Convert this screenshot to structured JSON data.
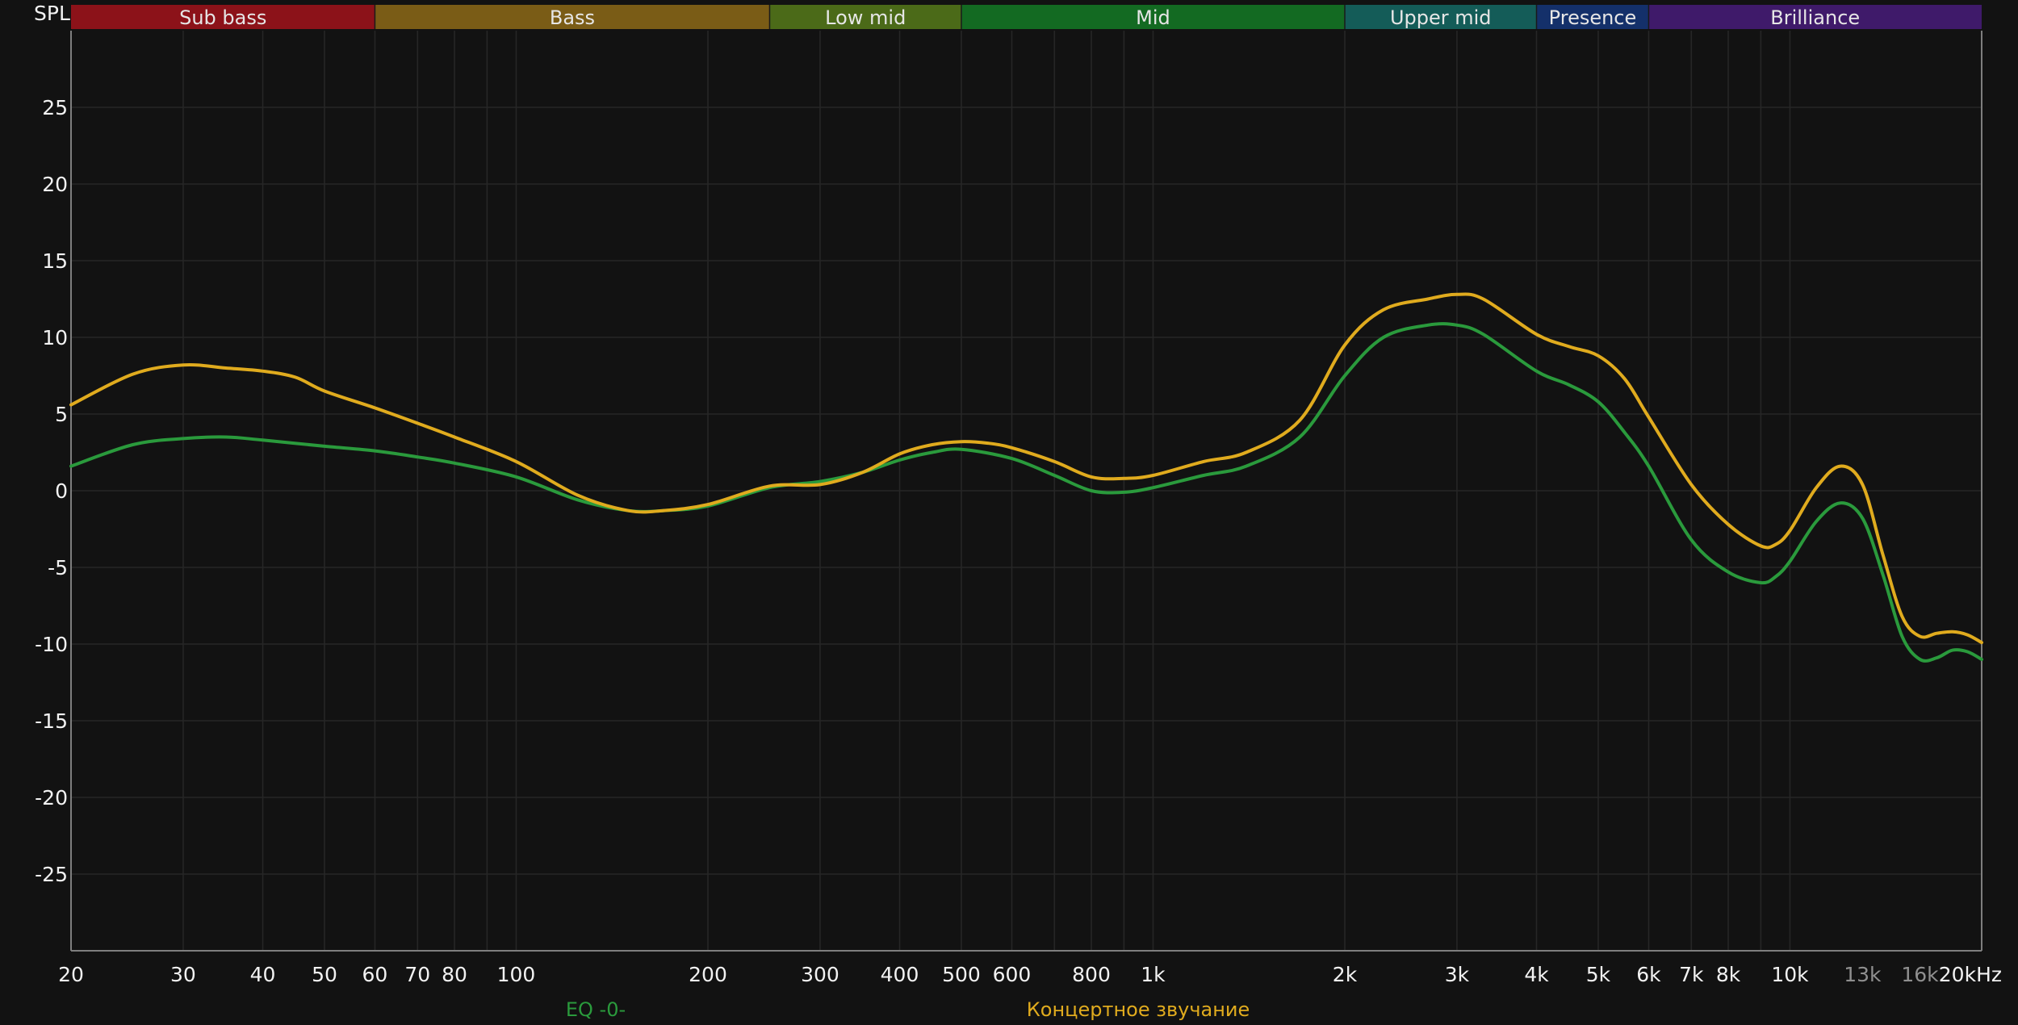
{
  "chart_data": {
    "type": "line",
    "ylabel": "SPL",
    "x_unit": "kHz",
    "x_scale": "log",
    "xlim": [
      20,
      20000
    ],
    "ylim": [
      -30,
      30
    ],
    "grid": true,
    "y_ticks": [
      25,
      20,
      15,
      10,
      5,
      0,
      -5,
      -10,
      -15,
      -20,
      -25
    ],
    "x_ticks": [
      {
        "value": 20,
        "label": "20"
      },
      {
        "value": 30,
        "label": "30"
      },
      {
        "value": 40,
        "label": "40"
      },
      {
        "value": 50,
        "label": "50"
      },
      {
        "value": 60,
        "label": "60"
      },
      {
        "value": 70,
        "label": "70"
      },
      {
        "value": 80,
        "label": "80"
      },
      {
        "value": 100,
        "label": "100"
      },
      {
        "value": 200,
        "label": "200"
      },
      {
        "value": 300,
        "label": "300"
      },
      {
        "value": 400,
        "label": "400"
      },
      {
        "value": 500,
        "label": "500"
      },
      {
        "value": 600,
        "label": "600"
      },
      {
        "value": 800,
        "label": "800"
      },
      {
        "value": 1000,
        "label": "1k"
      },
      {
        "value": 2000,
        "label": "2k"
      },
      {
        "value": 3000,
        "label": "3k"
      },
      {
        "value": 4000,
        "label": "4k"
      },
      {
        "value": 5000,
        "label": "5k"
      },
      {
        "value": 6000,
        "label": "6k"
      },
      {
        "value": 7000,
        "label": "7k"
      },
      {
        "value": 8000,
        "label": "8k"
      },
      {
        "value": 10000,
        "label": "10k"
      },
      {
        "value": 13000,
        "label": "13k",
        "dim": true
      },
      {
        "value": 16000,
        "label": "16k",
        "dim": true
      },
      {
        "value": 20000,
        "label": "20kHz"
      }
    ],
    "bands": [
      {
        "label": "Sub bass",
        "from": 20,
        "to": 60,
        "color": "#8c1219"
      },
      {
        "label": "Bass",
        "from": 60,
        "to": 250,
        "color": "#7a5c16"
      },
      {
        "label": "Low mid",
        "from": 250,
        "to": 500,
        "color": "#4b6a18"
      },
      {
        "label": "Mid",
        "from": 500,
        "to": 2000,
        "color": "#136a22"
      },
      {
        "label": "Upper mid",
        "from": 2000,
        "to": 4000,
        "color": "#145c58"
      },
      {
        "label": "Presence",
        "from": 4000,
        "to": 6000,
        "color": "#14306a"
      },
      {
        "label": "Brilliance",
        "from": 6000,
        "to": 20000,
        "color": "#3f1a6a"
      }
    ],
    "series": [
      {
        "name": "EQ -0-",
        "color": "#2a9a3c",
        "x": [
          20,
          25,
          30,
          35,
          40,
          50,
          60,
          70,
          80,
          100,
          125,
          150,
          170,
          200,
          250,
          300,
          350,
          400,
          450,
          500,
          600,
          700,
          800,
          900,
          1000,
          1200,
          1400,
          1700,
          2000,
          2300,
          2700,
          3000,
          3300,
          4000,
          4500,
          5000,
          5500,
          6000,
          7000,
          8000,
          9000,
          9500,
          10000,
          11000,
          12000,
          13000,
          14000,
          15000,
          16000,
          17000,
          18000,
          19000,
          20000
        ],
        "y": [
          1.6,
          3.0,
          3.4,
          3.5,
          3.3,
          2.9,
          2.6,
          2.2,
          1.8,
          0.9,
          -0.6,
          -1.3,
          -1.3,
          -1.0,
          0.2,
          0.6,
          1.2,
          2.0,
          2.5,
          2.7,
          2.1,
          1.0,
          0.0,
          -0.1,
          0.2,
          1.0,
          1.6,
          3.5,
          7.5,
          10.0,
          10.8,
          10.8,
          10.2,
          7.8,
          6.9,
          5.8,
          3.8,
          1.6,
          -3.2,
          -5.3,
          -6.0,
          -5.6,
          -4.6,
          -2.0,
          -0.8,
          -1.8,
          -5.5,
          -9.5,
          -11.0,
          -10.9,
          -10.4,
          -10.5,
          -11.0
        ]
      },
      {
        "name": "Концертное звучание",
        "color": "#e0ab1e",
        "x": [
          20,
          25,
          30,
          35,
          40,
          45,
          50,
          60,
          70,
          80,
          100,
          125,
          150,
          170,
          200,
          250,
          300,
          350,
          400,
          450,
          500,
          550,
          600,
          700,
          800,
          900,
          1000,
          1200,
          1400,
          1700,
          2000,
          2300,
          2700,
          3000,
          3300,
          4000,
          4500,
          5000,
          5500,
          6000,
          7000,
          8000,
          9000,
          9500,
          10000,
          11000,
          12000,
          13000,
          14000,
          15000,
          16000,
          17000,
          18000,
          19000,
          20000
        ],
        "y": [
          5.6,
          7.6,
          8.2,
          8.0,
          7.8,
          7.4,
          6.5,
          5.4,
          4.4,
          3.5,
          1.9,
          -0.3,
          -1.3,
          -1.3,
          -0.9,
          0.3,
          0.4,
          1.2,
          2.4,
          3.0,
          3.2,
          3.1,
          2.8,
          1.9,
          0.9,
          0.8,
          1.0,
          1.9,
          2.5,
          4.6,
          9.5,
          11.8,
          12.5,
          12.8,
          12.5,
          10.2,
          9.4,
          8.8,
          7.3,
          4.8,
          0.4,
          -2.2,
          -3.6,
          -3.5,
          -2.6,
          0.2,
          1.6,
          0.4,
          -4.2,
          -8.2,
          -9.5,
          -9.3,
          -9.2,
          -9.4,
          -9.9
        ]
      }
    ]
  }
}
